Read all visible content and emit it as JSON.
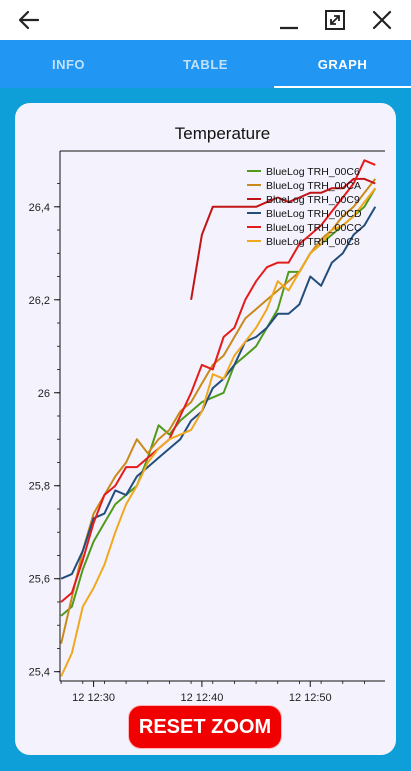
{
  "window": {
    "back_icon": "arrow-left-icon",
    "minimize_icon": "minimize-icon",
    "fullscreen_icon": "fullscreen-icon",
    "close_icon": "close-icon"
  },
  "tabs": [
    {
      "label": "INFO",
      "active": false
    },
    {
      "label": "TABLE",
      "active": false
    },
    {
      "label": "GRAPH",
      "active": true
    }
  ],
  "colors": {
    "tab_bar": "#2196f3",
    "background": "#0f9fd8",
    "card": "#f4f3fd",
    "reset_button": "#f00000"
  },
  "reset_button": {
    "label": "RESET ZOOM"
  },
  "chart_data": {
    "type": "line",
    "title": "Temperature",
    "xlabel": "",
    "ylabel": "",
    "ylim": [
      25.38,
      26.52
    ],
    "xlim": [
      "12:26.9",
      "12:56.9"
    ],
    "x_ticks": [
      "12 12:30",
      "12 12:40",
      "12 12:50"
    ],
    "y_ticks": [
      "25,4",
      "25,6",
      "25,8",
      "26",
      "26,2",
      "26,4"
    ],
    "legend_position": "top-right",
    "grid": false,
    "x_units": "minutes past 12:00, day 12",
    "series": [
      {
        "name": "BlueLog TRH_00C6",
        "color": "#4f9a1c",
        "x": [
          27,
          28,
          29,
          30,
          31,
          32,
          33,
          34,
          35,
          36,
          37,
          38,
          39,
          40,
          41,
          42,
          43,
          44,
          45,
          46,
          47,
          48,
          49,
          50,
          51,
          52,
          53,
          54,
          55,
          56
        ],
        "values": [
          25.52,
          25.54,
          25.62,
          25.68,
          25.72,
          25.76,
          25.78,
          25.8,
          25.86,
          25.93,
          25.91,
          25.94,
          25.96,
          25.98,
          25.99,
          26.0,
          26.06,
          26.08,
          26.1,
          26.14,
          26.18,
          26.26,
          26.26,
          26.3,
          26.32,
          26.34,
          26.36,
          26.38,
          26.4,
          26.44
        ]
      },
      {
        "name": "BlueLog TRH_00CA",
        "color": "#c88a1a",
        "x": [
          27,
          28,
          29,
          30,
          31,
          32,
          33,
          34,
          35,
          36,
          37,
          38,
          39,
          40,
          41,
          42,
          43,
          44,
          45,
          46,
          47,
          48,
          49,
          50,
          51,
          52,
          53,
          54,
          55,
          56
        ],
        "values": [
          25.46,
          25.56,
          25.66,
          25.74,
          25.78,
          25.82,
          25.85,
          25.9,
          25.87,
          25.9,
          25.92,
          25.96,
          25.98,
          26.02,
          26.06,
          26.08,
          26.12,
          26.16,
          26.18,
          26.2,
          26.22,
          26.24,
          26.26,
          26.3,
          26.33,
          26.35,
          26.38,
          26.4,
          26.43,
          26.46
        ]
      },
      {
        "name": "BlueLog TRH_00C9",
        "color": "#c21414",
        "x": [
          39,
          40,
          41,
          42,
          43,
          44,
          45,
          46,
          47,
          48,
          49,
          50,
          51,
          52,
          53,
          54,
          55,
          56
        ],
        "values": [
          26.2,
          26.34,
          26.4,
          26.4,
          26.4,
          26.4,
          26.4,
          26.41,
          26.42,
          26.41,
          26.42,
          26.43,
          26.43,
          26.44,
          26.44,
          26.46,
          26.46,
          26.45
        ]
      },
      {
        "name": "BlueLog TRH_00CD",
        "color": "#234e7c",
        "x": [
          27,
          28,
          29,
          30,
          31,
          32,
          33,
          34,
          35,
          36,
          37,
          38,
          39,
          40,
          41,
          42,
          43,
          44,
          45,
          46,
          47,
          48,
          49,
          50,
          51,
          52,
          53,
          54,
          55,
          56
        ],
        "values": [
          25.6,
          25.61,
          25.66,
          25.73,
          25.74,
          25.79,
          25.78,
          25.82,
          25.84,
          25.86,
          25.88,
          25.9,
          25.94,
          25.96,
          26.01,
          26.03,
          26.06,
          26.11,
          26.12,
          26.14,
          26.17,
          26.17,
          26.19,
          26.25,
          26.23,
          26.28,
          26.3,
          26.34,
          26.36,
          26.4
        ]
      },
      {
        "name": "BlueLog TRH_00CC",
        "color": "#e41b1b",
        "x": [
          27,
          28,
          29,
          30,
          31,
          32,
          33,
          34,
          35,
          36,
          37,
          38,
          39,
          40,
          41,
          42,
          43,
          44,
          45,
          46,
          47,
          48,
          49,
          50,
          51,
          52,
          53,
          54,
          55,
          56
        ],
        "values": [
          25.55,
          25.57,
          25.64,
          25.72,
          25.78,
          25.8,
          25.84,
          25.84,
          25.86,
          25.88,
          25.9,
          25.95,
          26.0,
          26.06,
          26.05,
          26.12,
          26.14,
          26.2,
          26.24,
          26.27,
          26.28,
          26.28,
          26.32,
          26.34,
          26.36,
          26.39,
          26.42,
          26.45,
          26.5,
          26.49
        ]
      },
      {
        "name": "BlueLog TRH_00C8",
        "color": "#f0a81e",
        "x": [
          27,
          28,
          29,
          30,
          31,
          32,
          33,
          34,
          35,
          36,
          37,
          38,
          39,
          40,
          41,
          42,
          43,
          44,
          45,
          46,
          47,
          48,
          49,
          50,
          51,
          52,
          53,
          54,
          55,
          56
        ],
        "values": [
          25.39,
          25.44,
          25.54,
          25.58,
          25.63,
          25.7,
          25.76,
          25.8,
          25.85,
          25.88,
          25.9,
          25.91,
          25.92,
          25.96,
          26.04,
          26.03,
          26.08,
          26.11,
          26.14,
          26.18,
          26.24,
          26.22,
          26.26,
          26.3,
          26.32,
          26.35,
          26.36,
          26.38,
          26.41,
          26.44
        ]
      }
    ]
  }
}
